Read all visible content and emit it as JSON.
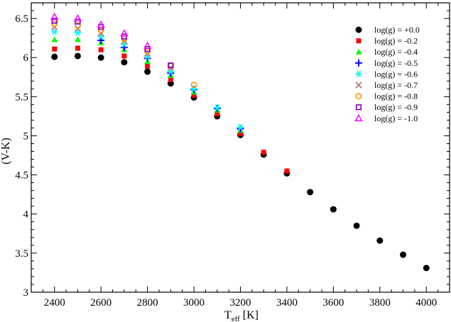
{
  "chart_data": {
    "type": "scatter",
    "title": "",
    "xlabel": "T",
    "xlabel_sub": "eff",
    "xlabel_unit": " [K]",
    "ylabel": "(V-K)",
    "xlim": [
      2300,
      4100
    ],
    "ylim": [
      3,
      6.7
    ],
    "x_ticks": [
      2400,
      2600,
      2800,
      3000,
      3200,
      3400,
      3600,
      3800,
      4000
    ],
    "y_ticks": [
      3,
      3.5,
      4,
      4.5,
      5,
      5.5,
      6,
      6.5
    ],
    "y_tick_labels": [
      "3",
      "3.5",
      "4",
      "4.5",
      "5",
      "5.5",
      "6",
      "6.5"
    ],
    "grid": false,
    "legend_position": "top-right",
    "series": [
      {
        "name": "log(g) = +0.0",
        "marker": "filled-circle",
        "color": "#000000",
        "x": [
          2400,
          2500,
          2600,
          2700,
          2800,
          2900,
          3000,
          3100,
          3200,
          3300,
          3400,
          3500,
          3600,
          3700,
          3800,
          3900,
          4000
        ],
        "y": [
          6.01,
          6.02,
          6.0,
          5.94,
          5.82,
          5.67,
          5.49,
          5.25,
          5.01,
          4.76,
          4.52,
          4.28,
          4.06,
          3.85,
          3.66,
          3.48,
          3.31
        ]
      },
      {
        "name": "log(g) = -0.2",
        "marker": "filled-square",
        "color": "#ff0000",
        "x": [
          2400,
          2500,
          2600,
          2700,
          2800,
          2900,
          3000,
          3100,
          3200,
          3300,
          3400
        ],
        "y": [
          6.11,
          6.12,
          6.1,
          6.02,
          5.89,
          5.72,
          5.52,
          5.28,
          5.03,
          4.79,
          4.55
        ]
      },
      {
        "name": "log(g) = -0.4",
        "marker": "filled-triangle",
        "color": "#00ff00",
        "x": [
          2400,
          2500,
          2600,
          2700,
          2800,
          2900,
          3000,
          3100,
          3200
        ],
        "y": [
          6.23,
          6.23,
          6.19,
          6.1,
          5.95,
          5.77,
          5.56,
          5.33,
          5.07
        ]
      },
      {
        "name": "log(g) = -0.5",
        "marker": "plus",
        "color": "#0000ff",
        "x": [
          2600,
          2700,
          2800,
          2900,
          3000,
          3100,
          3200
        ],
        "y": [
          6.22,
          6.13,
          5.99,
          5.8,
          5.59,
          5.35,
          5.09
        ]
      },
      {
        "name": "log(g) = -0.6",
        "marker": "asterisk",
        "color": "#00ffff",
        "x": [
          2400,
          2500,
          2600,
          2700,
          2800,
          2900,
          3000,
          3100,
          3200
        ],
        "y": [
          6.33,
          6.32,
          6.27,
          6.17,
          6.02,
          5.82,
          5.6,
          5.36,
          5.11
        ]
      },
      {
        "name": "log(g) = -0.7",
        "marker": "cross",
        "color": "#c08080",
        "x": [
          2400,
          2500,
          2600,
          2700,
          2800,
          2900
        ],
        "y": [
          6.39,
          6.37,
          6.31,
          6.21,
          6.05,
          5.87
        ]
      },
      {
        "name": "log(g) = -0.8",
        "marker": "open-circle",
        "color": "#ff9900",
        "x": [
          2400,
          2500,
          2600,
          2700,
          2800,
          2900,
          3000
        ],
        "y": [
          6.43,
          6.41,
          6.35,
          6.24,
          6.08,
          5.89,
          5.65
        ]
      },
      {
        "name": "log(g) = -0.9",
        "marker": "open-square",
        "color": "#8000c0",
        "x": [
          2400,
          2500,
          2600,
          2700,
          2800,
          2900
        ],
        "y": [
          6.47,
          6.46,
          6.39,
          6.27,
          6.11,
          5.9
        ]
      },
      {
        "name": "log(g) = -1.0",
        "marker": "open-triangle",
        "color": "#ff00ff",
        "x": [
          2400,
          2500,
          2600,
          2700,
          2800
        ],
        "y": [
          6.52,
          6.5,
          6.42,
          6.31,
          6.15
        ]
      }
    ]
  }
}
